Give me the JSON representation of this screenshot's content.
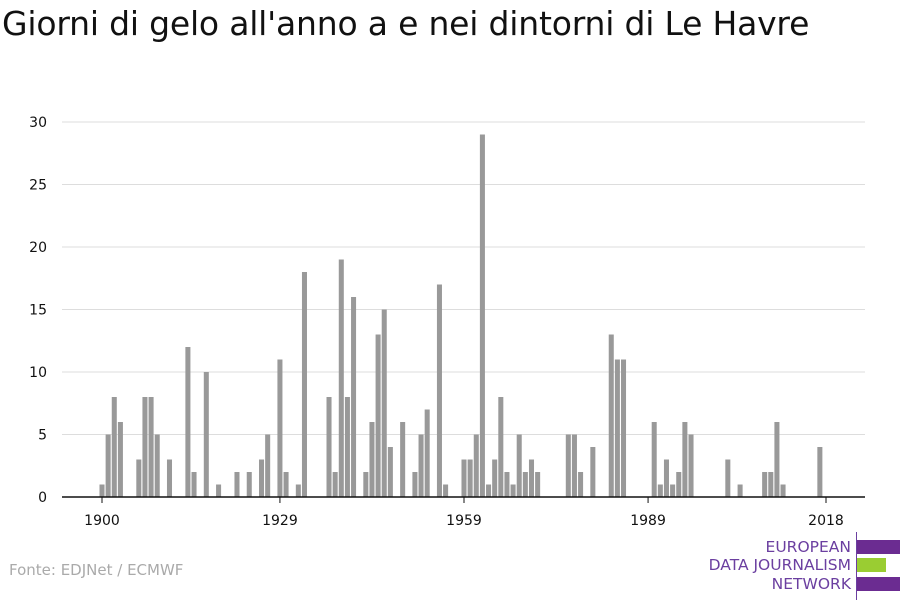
{
  "title": "Giorni di gelo all'anno a e nei dintorni di Le Havre",
  "source": "Fonte: EDJNet / ECMWF",
  "logo": {
    "line1": "EUROPEAN",
    "line2": "DATA JOURNALISM",
    "line3": "NETWORK",
    "colors": {
      "primary": "#6b2c91",
      "accent": "#9acd32"
    }
  },
  "colors": {
    "bar": "#999999",
    "grid": "#dddddd",
    "axis": "#111111",
    "tick_text": "#111111"
  },
  "chart_data": {
    "type": "bar",
    "title": "Giorni di gelo all'anno a e nei dintorni di Le Havre",
    "xlabel": "",
    "ylabel": "",
    "ylim": [
      0,
      30
    ],
    "yticks": [
      0,
      5,
      10,
      15,
      20,
      25,
      30
    ],
    "xlim": [
      1900,
      2018
    ],
    "xticks": [
      1900,
      1929,
      1959,
      1989,
      2018
    ],
    "grid": true,
    "x": [
      1900,
      1901,
      1902,
      1903,
      1904,
      1905,
      1906,
      1907,
      1908,
      1909,
      1910,
      1911,
      1912,
      1913,
      1914,
      1915,
      1916,
      1917,
      1918,
      1919,
      1920,
      1921,
      1922,
      1923,
      1924,
      1925,
      1926,
      1927,
      1928,
      1929,
      1930,
      1931,
      1932,
      1933,
      1934,
      1935,
      1936,
      1937,
      1938,
      1939,
      1940,
      1941,
      1942,
      1943,
      1944,
      1945,
      1946,
      1947,
      1948,
      1949,
      1950,
      1951,
      1952,
      1953,
      1954,
      1955,
      1956,
      1957,
      1958,
      1959,
      1960,
      1961,
      1962,
      1963,
      1964,
      1965,
      1966,
      1967,
      1968,
      1969,
      1970,
      1971,
      1972,
      1973,
      1974,
      1975,
      1976,
      1977,
      1978,
      1979,
      1980,
      1981,
      1982,
      1983,
      1984,
      1985,
      1986,
      1987,
      1988,
      1989,
      1990,
      1991,
      1992,
      1993,
      1994,
      1995,
      1996,
      1997,
      1998,
      1999,
      2000,
      2001,
      2002,
      2003,
      2004,
      2005,
      2006,
      2007,
      2008,
      2009,
      2010,
      2011,
      2012,
      2013,
      2014,
      2015,
      2016,
      2017,
      2018
    ],
    "values": [
      1,
      5,
      8,
      6,
      0,
      0,
      3,
      8,
      8,
      5,
      0,
      3,
      0,
      0,
      12,
      2,
      0,
      10,
      0,
      1,
      0,
      0,
      2,
      0,
      2,
      0,
      3,
      5,
      0,
      11,
      2,
      0,
      1,
      18,
      0,
      0,
      0,
      8,
      2,
      19,
      8,
      16,
      0,
      2,
      6,
      13,
      15,
      4,
      0,
      6,
      0,
      2,
      5,
      7,
      0,
      17,
      1,
      0,
      0,
      3,
      3,
      5,
      29,
      1,
      3,
      8,
      2,
      1,
      5,
      2,
      3,
      2,
      0,
      0,
      0,
      0,
      5,
      5,
      2,
      0,
      4,
      0,
      0,
      13,
      11,
      11,
      0,
      0,
      0,
      0,
      6,
      1,
      3,
      1,
      2,
      6,
      5,
      0,
      0,
      0,
      0,
      0,
      3,
      0,
      1,
      0,
      0,
      0,
      2,
      2,
      6,
      1,
      0,
      0,
      0,
      0,
      0,
      4,
      0
    ]
  }
}
